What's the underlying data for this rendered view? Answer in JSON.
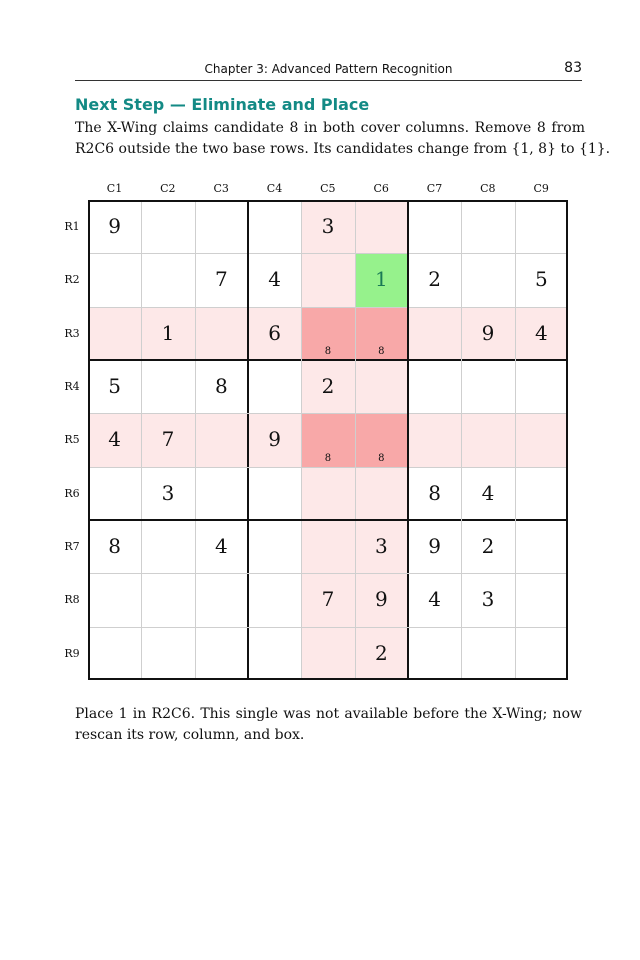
{
  "header": {
    "chapter": "Chapter 3: Advanced Pattern Recognition",
    "page_number": "83"
  },
  "section_title": "Next Step — Eliminate and Place",
  "intro_lines": [
    "The X-Wing claims candidate 8 in both cover columns. Remove 8 from",
    "R2C6 outside the two base rows. Its candidates change from {1, 8} to {1}."
  ],
  "columns": [
    "C1",
    "C2",
    "C3",
    "C4",
    "C5",
    "C6",
    "C7",
    "C8",
    "C9"
  ],
  "rows": [
    "R1",
    "R2",
    "R3",
    "R4",
    "R5",
    "R6",
    "R7",
    "R8",
    "R9"
  ],
  "colors": {
    "title_teal": "#138a85",
    "light_highlight": "#fde8e8",
    "strong_highlight": "#f8a8a8",
    "placed_cell": "#96f28c",
    "placed_digit": "#1a7a55"
  },
  "board": [
    [
      "9",
      "",
      "",
      "",
      "3",
      "",
      "",
      "",
      ""
    ],
    [
      "",
      "",
      "7",
      "4",
      "",
      "1",
      "2",
      "",
      "5"
    ],
    [
      "",
      "1",
      "",
      "6",
      "",
      "",
      "",
      "9",
      "4"
    ],
    [
      "5",
      "",
      "8",
      "",
      "2",
      "",
      "",
      "",
      ""
    ],
    [
      "4",
      "7",
      "",
      "9",
      "",
      "",
      "",
      "",
      ""
    ],
    [
      "",
      "3",
      "",
      "",
      "",
      "",
      "8",
      "4",
      ""
    ],
    [
      "8",
      "",
      "4",
      "",
      "",
      "3",
      "9",
      "2",
      ""
    ],
    [
      "",
      "",
      "",
      "",
      "7",
      "9",
      "4",
      "3",
      ""
    ],
    [
      "",
      "",
      "",
      "",
      "",
      "2",
      "",
      "",
      ""
    ]
  ],
  "candidates": [
    {
      "row": 3,
      "col": 5,
      "value": "8"
    },
    {
      "row": 3,
      "col": 6,
      "value": "8"
    },
    {
      "row": 5,
      "col": 5,
      "value": "8"
    },
    {
      "row": 5,
      "col": 6,
      "value": "8"
    }
  ],
  "highlight_rows": [
    3,
    5
  ],
  "highlight_cols": [
    5,
    6
  ],
  "strong_cells": [
    [
      3,
      5
    ],
    [
      3,
      6
    ],
    [
      5,
      5
    ],
    [
      5,
      6
    ]
  ],
  "placed_cell": [
    2,
    6
  ],
  "outro_lines": [
    "Place 1 in R2C6. This single was not available before the X-Wing; now",
    "rescan its row, column, and box."
  ]
}
